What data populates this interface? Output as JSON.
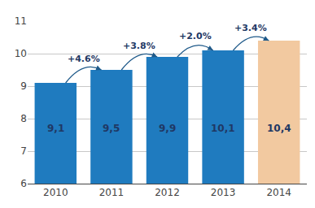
{
  "chart_data": {
    "type": "bar",
    "categories": [
      "2010",
      "2011",
      "2012",
      "2013",
      "2014"
    ],
    "values": [
      9.1,
      9.5,
      9.9,
      10.1,
      10.4
    ],
    "value_labels": [
      "9,1",
      "9,5",
      "9,9",
      "10,1",
      "10,4"
    ],
    "colors": [
      "#1f7bbf",
      "#1f7bbf",
      "#1f7bbf",
      "#1f7bbf",
      "#f2c9a0"
    ],
    "data_labels": true,
    "annotations": [
      "+4.6%",
      "+3.8%",
      "+2.0%",
      "+3.4%"
    ],
    "ylim": [
      6,
      11
    ],
    "yticks": [
      6,
      7,
      8,
      9,
      10,
      11
    ],
    "grid": true
  }
}
